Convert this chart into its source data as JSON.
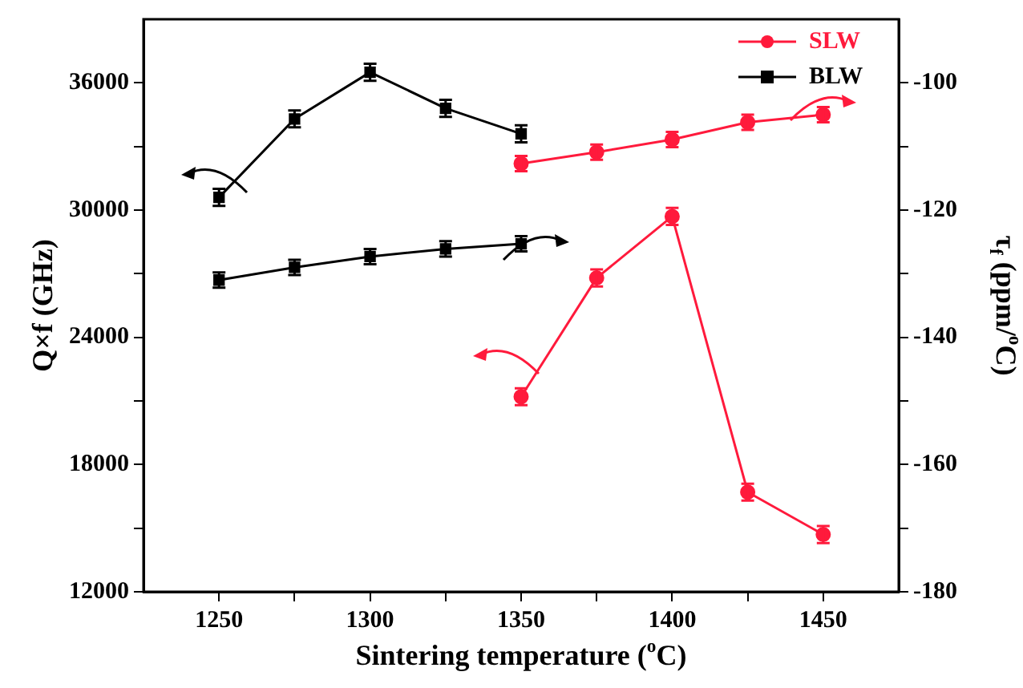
{
  "chart_data": {
    "type": "line",
    "xlabel": "Sintering temperature ($^{o}$C)",
    "ylabel": "Q×f (GHz)",
    "y2label": "τ$_{f}$ (ppm/$^{o}$C)",
    "x": [
      1250,
      1275,
      1300,
      1325,
      1350
    ],
    "xlim": [
      1225,
      1475
    ],
    "xticks": [
      1250,
      {
        "value": 1275,
        "label": null
      },
      1300,
      {
        "value": 1325,
        "label": null
      },
      1350,
      {
        "value": 1375,
        "label": null
      },
      1400,
      {
        "value": 1425,
        "label": null
      },
      1450
    ],
    "ylim": [
      12000,
      39000
    ],
    "yticks": [
      12000,
      {
        "value": 15000,
        "label": null
      },
      18000,
      {
        "value": 21000,
        "label": null
      },
      24000,
      {
        "value": 27000,
        "label": null
      },
      30000,
      {
        "value": 33000,
        "label": null
      },
      36000
    ],
    "y2lim": [
      -180,
      -90
    ],
    "y2ticks": [
      -180,
      {
        "value": -170,
        "label": null
      },
      -160,
      {
        "value": -150,
        "label": null
      },
      -140,
      {
        "value": -130,
        "label": null
      },
      -120,
      {
        "value": -110,
        "label": null
      },
      -100
    ],
    "series": [
      {
        "name": "SLW",
        "color": "#ff1a3c",
        "marker": "circle",
        "x": [
          1350,
          1375,
          1400,
          1425,
          1450
        ],
        "values": [
          21200,
          26800,
          29700,
          16700,
          14700
        ],
        "errors": [
          400,
          400,
          400,
          400,
          400
        ]
      },
      {
        "name": "BLW",
        "color": "#000000",
        "marker": "square",
        "values": [
          30600,
          34300,
          36500,
          34800,
          33600
        ],
        "errors": [
          400,
          400,
          400,
          400,
          400
        ]
      },
      {
        "color": "#ff1a3c",
        "marker": "circle",
        "axis": "y2",
        "x": [
          1350,
          1375,
          1400,
          1425,
          1450
        ],
        "values": [
          -112.7,
          -110.9,
          -108.9,
          -106.2,
          -105
        ],
        "errors": [
          1.2,
          1.2,
          1.2,
          1.2,
          1.2
        ]
      },
      {
        "color": "#000000",
        "marker": "square",
        "axis": "y2",
        "values": [
          -131,
          -129,
          -127.3,
          -126.1,
          -125.3
        ],
        "errors": [
          1.2,
          1.2,
          1.2,
          1.2,
          1.2
        ]
      }
    ],
    "legend": "top right",
    "grid": false,
    "line_style": "solid"
  }
}
